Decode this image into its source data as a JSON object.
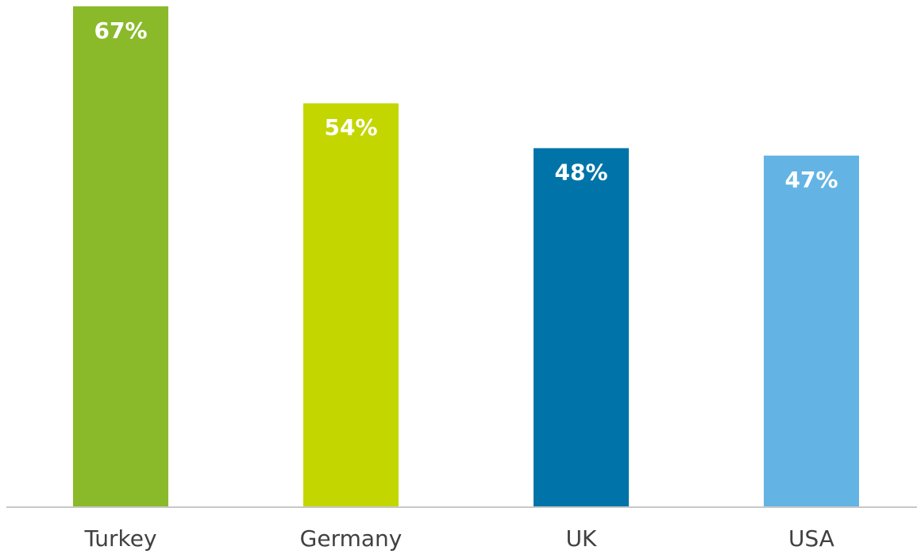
{
  "chart_data": {
    "type": "bar",
    "categories": [
      "Turkey",
      "Germany",
      "UK",
      "USA"
    ],
    "values": [
      67,
      54,
      48,
      47
    ],
    "value_labels": [
      "67%",
      "54%",
      "48%",
      "47%"
    ],
    "colors": [
      "#8aba2a",
      "#c3d600",
      "#0074a8",
      "#63b4e4"
    ],
    "ylim": [
      0,
      67
    ],
    "grid": false,
    "legend": "none",
    "axis_color": "#c8c8c8",
    "title": "",
    "xlabel": "",
    "ylabel": ""
  }
}
